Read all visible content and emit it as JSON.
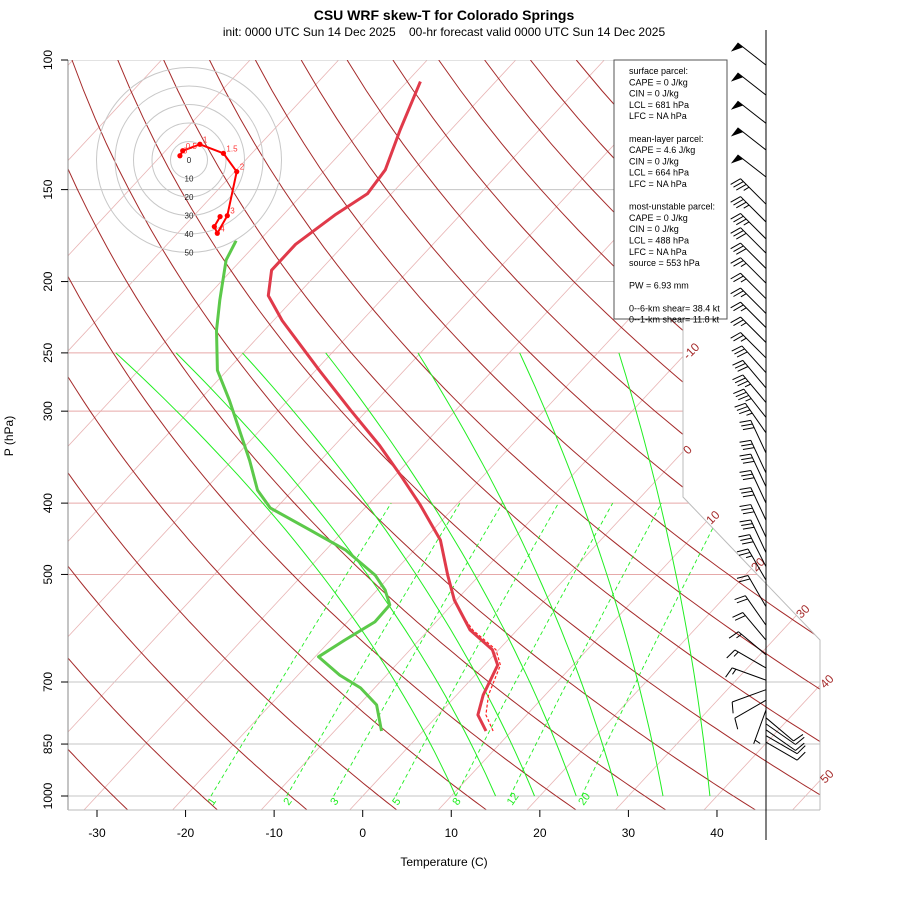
{
  "header": {
    "title": "CSU WRF skew-T for Colorado Springs",
    "subtitle": "init: 0000 UTC Sun 14 Dec 2025    00-hr forecast valid 0000 UTC Sun 14 Dec 2025"
  },
  "legend": {
    "lines": [
      "surface parcel:",
      "CAPE = 0 J/kg",
      "CIN = 0 J/kg",
      "LCL = 681 hPa",
      "LFC = NA hPa",
      "",
      "mean-layer parcel:",
      "CAPE = 4.6 J/kg",
      "CIN = 0 J/kg",
      "LCL = 664 hPa",
      "LFC = NA hPa",
      "",
      "most-unstable parcel:",
      "CAPE = 0 J/kg",
      "CIN = 0 J/kg",
      "LCL = 488 hPa",
      "LFC = NA hPa",
      "source = 553 hPa",
      "",
      "PW =  6.93 mm",
      "",
      "0--6-km shear= 38.4 kt",
      "0--1-km shear= 11.8 kt"
    ]
  },
  "colors": {
    "temperature": "#e03a4a",
    "dewpoint": "#5cc94a",
    "dry_adiabat": "#a52a2a",
    "isotherm": "#e8b4b4",
    "moist_adiabat": "#22ee22",
    "mixing_ratio": "#22ee22",
    "hodograph": "#ff0000"
  },
  "chart_data": {
    "type": "skew-T",
    "title": "CSU WRF skew-T for Colorado Springs",
    "xlabel": "Temperature (C)",
    "ylabel": "P (hPa)",
    "xlim": [
      -33,
      44
    ],
    "ylim": [
      1050,
      100
    ],
    "x_ticks": [
      -30,
      -20,
      -10,
      0,
      10,
      20,
      30,
      40
    ],
    "pressure_ticks": [
      100,
      150,
      200,
      250,
      300,
      400,
      500,
      700,
      850,
      1000
    ],
    "isotherm_labels": [
      -10,
      0,
      10,
      20,
      30,
      40,
      50
    ],
    "mixing_ratio_lines": [
      1,
      2,
      3,
      5,
      8,
      12,
      20
    ],
    "moist_adiabats": [
      {
        "t1000": 10.5,
        "t250": -74.4
      },
      {
        "t1000": 15.0,
        "t250": -67.6
      },
      {
        "t1000": 19.4,
        "t250": -60.1
      },
      {
        "t1000": 24.1,
        "t250": -50.7
      },
      {
        "t1000": 28.8,
        "t250": -40.3
      },
      {
        "t1000": 33.9,
        "t250": -28.8
      },
      {
        "t1000": 39.2,
        "t250": -17.6
      }
    ],
    "temperature": [
      [
        816,
        7.1
      ],
      [
        776,
        4.5
      ],
      [
        729,
        3.0
      ],
      [
        664,
        1.5
      ],
      [
        633,
        -0.7
      ],
      [
        595,
        -5.3
      ],
      [
        542,
        -10.2
      ],
      [
        501,
        -13.6
      ],
      [
        449,
        -18.1
      ],
      [
        402,
        -24.1
      ],
      [
        366,
        -29.5
      ],
      [
        334,
        -34.9
      ],
      [
        299,
        -41.9
      ],
      [
        264,
        -49.6
      ],
      [
        226,
        -59.0
      ],
      [
        209,
        -63.2
      ],
      [
        193,
        -65.5
      ],
      [
        178,
        -65.5
      ],
      [
        162,
        -64.1
      ],
      [
        152,
        -62.7
      ],
      [
        141,
        -63.2
      ],
      [
        124.5,
        -65.7
      ],
      [
        107,
        -68.5
      ]
    ],
    "dewpoint": [
      [
        816,
        -4.7
      ],
      [
        752,
        -8.0
      ],
      [
        713,
        -11.6
      ],
      [
        685,
        -15.3
      ],
      [
        647,
        -19.6
      ],
      [
        614,
        -18.4
      ],
      [
        580,
        -16.9
      ],
      [
        550,
        -17.0
      ],
      [
        525,
        -19.1
      ],
      [
        501,
        -21.8
      ],
      [
        463,
        -27.8
      ],
      [
        435,
        -33.9
      ],
      [
        406,
        -40.7
      ],
      [
        384,
        -44.0
      ],
      [
        350,
        -48.0
      ],
      [
        290,
        -56.6
      ],
      [
        264,
        -61.1
      ],
      [
        233,
        -65.4
      ],
      [
        212,
        -68.2
      ],
      [
        187,
        -71.7
      ],
      [
        176,
        -72.6
      ]
    ],
    "parcel": [
      [
        816,
        7.9
      ],
      [
        776,
        5.4
      ],
      [
        729,
        3.6
      ],
      [
        664,
        1.8
      ],
      [
        633,
        -0.3
      ],
      [
        595,
        -5.0
      ],
      [
        560,
        -8.6
      ]
    ],
    "winds": [
      {
        "p": 101.6,
        "dir": 308,
        "spd": 50
      },
      {
        "p": 111.6,
        "dir": 308,
        "spd": 50
      },
      {
        "p": 121.9,
        "dir": 308,
        "spd": 50
      },
      {
        "p": 132.5,
        "dir": 308,
        "spd": 50
      },
      {
        "p": 144.2,
        "dir": 308,
        "spd": 50
      },
      {
        "p": 157,
        "dir": 315,
        "spd": 35
      },
      {
        "p": 166,
        "dir": 315,
        "spd": 35
      },
      {
        "p": 175,
        "dir": 315,
        "spd": 35
      },
      {
        "p": 183,
        "dir": 315,
        "spd": 30
      },
      {
        "p": 192,
        "dir": 315,
        "spd": 30
      },
      {
        "p": 201,
        "dir": 315,
        "spd": 25
      },
      {
        "p": 211,
        "dir": 315,
        "spd": 25
      },
      {
        "p": 221,
        "dir": 315,
        "spd": 25
      },
      {
        "p": 231,
        "dir": 315,
        "spd": 25
      },
      {
        "p": 242,
        "dir": 315,
        "spd": 25
      },
      {
        "p": 254,
        "dir": 315,
        "spd": 25
      },
      {
        "p": 266,
        "dir": 318,
        "spd": 30
      },
      {
        "p": 279,
        "dir": 320,
        "spd": 30
      },
      {
        "p": 292,
        "dir": 320,
        "spd": 35
      },
      {
        "p": 306,
        "dir": 322,
        "spd": 35
      },
      {
        "p": 321,
        "dir": 325,
        "spd": 35
      },
      {
        "p": 342,
        "dir": 335,
        "spd": 30
      },
      {
        "p": 364,
        "dir": 335,
        "spd": 30
      },
      {
        "p": 380,
        "dir": 335,
        "spd": 30
      },
      {
        "p": 400,
        "dir": 335,
        "spd": 30
      },
      {
        "p": 422,
        "dir": 335,
        "spd": 30
      },
      {
        "p": 445,
        "dir": 335,
        "spd": 30
      },
      {
        "p": 467,
        "dir": 335,
        "spd": 30
      },
      {
        "p": 488,
        "dir": 333,
        "spd": 30
      },
      {
        "p": 509,
        "dir": 330,
        "spd": 25
      },
      {
        "p": 553,
        "dir": 330,
        "spd": 20
      },
      {
        "p": 586,
        "dir": 325,
        "spd": 20
      },
      {
        "p": 614,
        "dir": 320,
        "spd": 20
      },
      {
        "p": 643,
        "dir": 310,
        "spd": 15
      },
      {
        "p": 670,
        "dir": 300,
        "spd": 15
      },
      {
        "p": 696,
        "dir": 290,
        "spd": 15
      },
      {
        "p": 717,
        "dir": 250,
        "spd": 10
      },
      {
        "p": 741,
        "dir": 240,
        "spd": 10
      },
      {
        "p": 764,
        "dir": 200,
        "spd": 5
      },
      {
        "p": 783,
        "dir": 130,
        "spd": 10
      },
      {
        "p": 798,
        "dir": 125,
        "spd": 10
      },
      {
        "p": 813,
        "dir": 125,
        "spd": 10
      },
      {
        "p": 828,
        "dir": 120,
        "spd": 10
      },
      {
        "p": 845,
        "dir": 120,
        "spd": 10
      }
    ],
    "hodograph": {
      "rings_kt": [
        10,
        20,
        30,
        40,
        50
      ],
      "ring_labels": [
        "0",
        "10",
        "20",
        "30",
        "40",
        "50"
      ],
      "points": [
        {
          "label": "0",
          "u": -4.9,
          "v": 2.3
        },
        {
          "label": "0.5",
          "u": -3.4,
          "v": 5.0
        },
        {
          "label": "1",
          "u": 5.9,
          "v": 8.5
        },
        {
          "label": "1.5",
          "u": 18.6,
          "v": 3.6
        },
        {
          "label": "2",
          "u": 25.8,
          "v": -6.3
        },
        {
          "label": "3",
          "u": 20.7,
          "v": -30.1
        },
        {
          "label": "4",
          "u": 15.3,
          "v": -39.6
        },
        {
          "label": "",
          "u": 13.7,
          "v": -36.0
        },
        {
          "label": "",
          "u": 16.8,
          "v": -30.6
        }
      ]
    }
  }
}
